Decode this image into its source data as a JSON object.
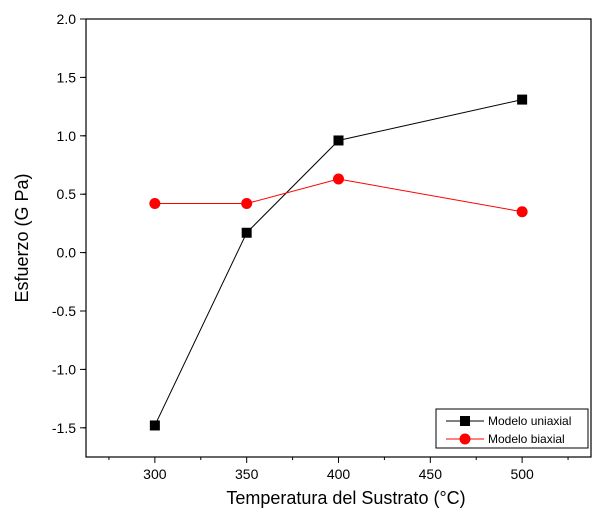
{
  "chart_data": {
    "type": "line",
    "title": "",
    "xlabel": "Temperatura del Sustrato (°C)",
    "ylabel": "Esfuerzo (G Pa)",
    "xlim": [
      262.5,
      537.5
    ],
    "ylim": [
      -1.75,
      2.0
    ],
    "x_ticks": [
      300,
      350,
      400,
      450,
      500
    ],
    "x_tick_labels": [
      "300",
      "350",
      "400",
      "450",
      "500"
    ],
    "y_ticks": [
      -1.5,
      -1.0,
      -0.5,
      0.0,
      0.5,
      1.0,
      1.5,
      2.0
    ],
    "y_tick_labels": [
      "-1.5",
      "-1.0",
      "-0.5",
      "0.0",
      "0.5",
      "1.0",
      "1.5",
      "2.0"
    ],
    "grid": false,
    "legend_position": "bottom-right",
    "series": [
      {
        "name": "Modelo uniaxial",
        "marker": "square",
        "color": "#000000",
        "x": [
          300,
          350,
          400,
          500
        ],
        "y": [
          -1.48,
          0.17,
          0.96,
          1.31
        ]
      },
      {
        "name": "Modelo biaxial",
        "marker": "circle",
        "color": "#ff0000",
        "x": [
          300,
          350,
          400,
          500
        ],
        "y": [
          0.42,
          0.42,
          0.63,
          0.35
        ]
      }
    ]
  }
}
